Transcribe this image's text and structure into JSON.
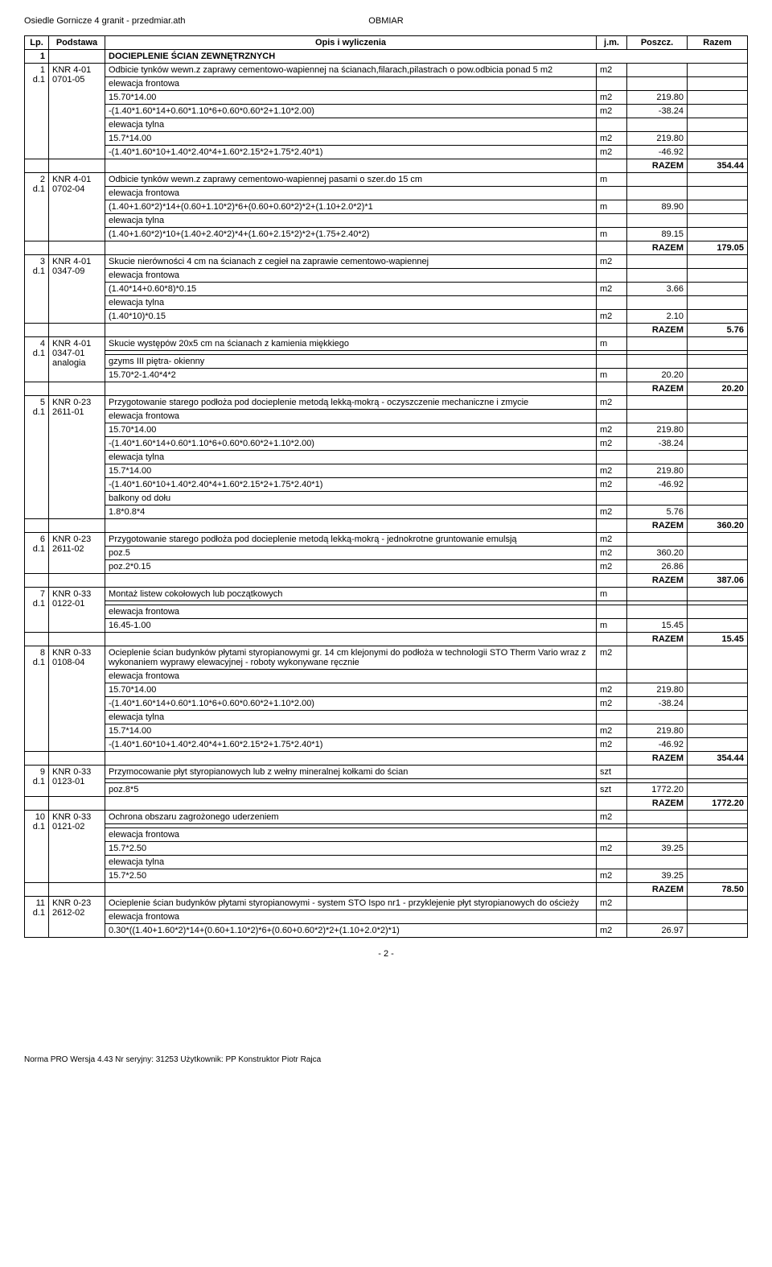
{
  "header": {
    "left": "Osiedle Gornicze 4 granit - przedmiar.ath",
    "center": "OBMIAR"
  },
  "columns": [
    "Lp.",
    "Podstawa",
    "Opis i wyliczenia",
    "j.m.",
    "Poszcz.",
    "Razem"
  ],
  "section": {
    "num": "1",
    "title": "DOCIEPLENIE ŚCIAN ZEWNĘTRZNYCH"
  },
  "rows": [
    {
      "lp": "1",
      "d": "d.1",
      "pod": "KNR 4-01",
      "pod2": "0701-05",
      "title": "Odbicie tynków wewn.z zaprawy cementowo-wapiennej na ścianach,filarach,pilastrach o pow.odbicia ponad 5 m2",
      "jm": "m2",
      "lines": [
        {
          "t": "elewacja  frontowa"
        },
        {
          "t": "15.70*14.00",
          "jm": "m2",
          "v": "219.80"
        },
        {
          "t": "-(1.40*1.60*14+0.60*1.10*6+0.60*0.60*2+1.10*2.00)",
          "jm": "m2",
          "v": "-38.24"
        },
        {
          "t": "elewacja tylna"
        },
        {
          "t": "15.7*14.00",
          "jm": "m2",
          "v": "219.80"
        },
        {
          "t": "-(1.40*1.60*10+1.40*2.40*4+1.60*2.15*2+1.75*2.40*1)",
          "jm": "m2",
          "v": "-46.92"
        }
      ],
      "razem": "354.44"
    },
    {
      "lp": "2",
      "d": "d.1",
      "pod": "KNR 4-01",
      "pod2": "0702-04",
      "title": "Odbicie tynków wewn.z zaprawy cementowo-wapiennej pasami o szer.do 15 cm",
      "jm": "m",
      "lines": [
        {
          "t": "elewacja  frontowa"
        },
        {
          "t": "(1.40+1.60*2)*14+(0.60+1.10*2)*6+(0.60+0.60*2)*2+(1.10+2.0*2)*1",
          "jm": "m",
          "v": "89.90"
        },
        {
          "t": "elewacja tylna"
        },
        {
          "t": "(1.40+1.60*2)*10+(1.40+2.40*2)*4+(1.60+2.15*2)*2+(1.75+2.40*2)",
          "jm": "m",
          "v": "89.15"
        }
      ],
      "razem": "179.05"
    },
    {
      "lp": "3",
      "d": "d.1",
      "pod": "KNR 4-01",
      "pod2": "0347-09",
      "title": "Skucie nierówności 4 cm na ścianach z cegieł na zaprawie cementowo-wapiennej",
      "jm": "m2",
      "lines": [
        {
          "t": "elewacja  frontowa"
        },
        {
          "t": "(1.40*14+0.60*8)*0.15",
          "jm": "m2",
          "v": "3.66"
        },
        {
          "t": "elewacja tylna"
        },
        {
          "t": "(1.40*10)*0.15",
          "jm": "m2",
          "v": "2.10"
        }
      ],
      "razem": "5.76"
    },
    {
      "lp": "4",
      "d": "d.1",
      "pod": "KNR 4-01",
      "pod2": "0347-01",
      "pod3": "analogia",
      "title": "Skucie występów 20x5 cm na ścianach z kamienia miękkiego",
      "jm": "m",
      "lines": [
        {
          "t": ""
        },
        {
          "t": "gzyms  III  piętra- okienny"
        },
        {
          "t": "15.70*2-1.40*4*2",
          "jm": "m",
          "v": "20.20"
        }
      ],
      "razem": "20.20"
    },
    {
      "lp": "5",
      "d": "d.1",
      "pod": "KNR 0-23",
      "pod2": "2611-01",
      "title": "Przygotowanie starego podłoża pod docieplenie metodą lekką-mokrą - oczyszczenie mechaniczne i zmycie",
      "jm": "m2",
      "lines": [
        {
          "t": "elewacja  frontowa"
        },
        {
          "t": "15.70*14.00",
          "jm": "m2",
          "v": "219.80"
        },
        {
          "t": "-(1.40*1.60*14+0.60*1.10*6+0.60*0.60*2+1.10*2.00)",
          "jm": "m2",
          "v": "-38.24"
        },
        {
          "t": "elewacja tylna"
        },
        {
          "t": "15.7*14.00",
          "jm": "m2",
          "v": "219.80"
        },
        {
          "t": "-(1.40*1.60*10+1.40*2.40*4+1.60*2.15*2+1.75*2.40*1)",
          "jm": "m2",
          "v": "-46.92"
        },
        {
          "t": "balkony od dołu"
        },
        {
          "t": "1.8*0.8*4",
          "jm": "m2",
          "v": "5.76"
        }
      ],
      "razem": "360.20"
    },
    {
      "lp": "6",
      "d": "d.1",
      "pod": "KNR 0-23",
      "pod2": "2611-02",
      "title": "Przygotowanie starego podłoża pod docieplenie metodą lekką-mokrą - jednokrotne gruntowanie emulsją",
      "jm": "m2",
      "lines": [
        {
          "t": "poz.5",
          "jm": "m2",
          "v": "360.20"
        },
        {
          "t": "poz.2*0.15",
          "jm": "m2",
          "v": "26.86"
        }
      ],
      "razem": "387.06"
    },
    {
      "lp": "7",
      "d": "d.1",
      "pod": "KNR 0-33",
      "pod2": "0122-01",
      "title": "Montaż listew cokołowych lub początkowych",
      "jm": "m",
      "lines": [
        {
          "t": ""
        },
        {
          "t": "elewacja  frontowa"
        },
        {
          "t": "16.45-1.00",
          "jm": "m",
          "v": "15.45"
        }
      ],
      "razem": "15.45"
    },
    {
      "lp": "8",
      "d": "d.1",
      "pod": "KNR 0-33",
      "pod2": "0108-04",
      "title": "Ocieplenie ścian budynków płytami styropianowymi gr. 14 cm klejonymi do podłoża w technologii STO Therm Vario wraz z wykonaniem wyprawy elewacyjnej - roboty wykonywane ręcznie",
      "jm": "m2",
      "lines": [
        {
          "t": "elewacja  frontowa"
        },
        {
          "t": "15.70*14.00",
          "jm": "m2",
          "v": "219.80"
        },
        {
          "t": "-(1.40*1.60*14+0.60*1.10*6+0.60*0.60*2+1.10*2.00)",
          "jm": "m2",
          "v": "-38.24"
        },
        {
          "t": "elewacja tylna"
        },
        {
          "t": "15.7*14.00",
          "jm": "m2",
          "v": "219.80"
        },
        {
          "t": "-(1.40*1.60*10+1.40*2.40*4+1.60*2.15*2+1.75*2.40*1)",
          "jm": "m2",
          "v": "-46.92"
        }
      ],
      "razem": "354.44"
    },
    {
      "lp": "9",
      "d": "d.1",
      "pod": "KNR 0-33",
      "pod2": "0123-01",
      "title": "Przymocowanie płyt styropianowych lub z wełny mineralnej kołkami do ścian",
      "jm": "szt",
      "lines": [
        {
          "t": ""
        },
        {
          "t": "poz.8*5",
          "jm": "szt",
          "v": "1772.20"
        }
      ],
      "razem": "1772.20"
    },
    {
      "lp": "10",
      "d": "d.1",
      "pod": "KNR 0-33",
      "pod2": "0121-02",
      "title": "Ochrona obszaru zagrożonego uderzeniem",
      "jm": "m2",
      "lines": [
        {
          "t": ""
        },
        {
          "t": "elewacja  frontowa"
        },
        {
          "t": "15.7*2.50",
          "jm": "m2",
          "v": "39.25"
        },
        {
          "t": "elewacja tylna"
        },
        {
          "t": "15.7*2.50",
          "jm": "m2",
          "v": "39.25"
        }
      ],
      "razem": "78.50"
    },
    {
      "lp": "11",
      "d": "d.1",
      "pod": "KNR 0-23",
      "pod2": "2612-02",
      "title": "Ocieplenie ścian budynków płytami styropianowymi - system STO Ispo nr1 - przyklejenie płyt styropianowych do ościeży",
      "jm": "m2",
      "lines": [
        {
          "t": "elewacja  frontowa"
        },
        {
          "t": "0.30*((1.40+1.60*2)*14+(0.60+1.10*2)*6+(0.60+0.60*2)*2+(1.10+2.0*2)*1)",
          "jm": "m2",
          "v": "26.97"
        }
      ]
    }
  ],
  "razem_label": "RAZEM",
  "page_num": "- 2 -",
  "footer": "Norma PRO Wersja 4.43 Nr seryjny: 31253 Użytkownik: PP Konstruktor Piotr Rajca"
}
